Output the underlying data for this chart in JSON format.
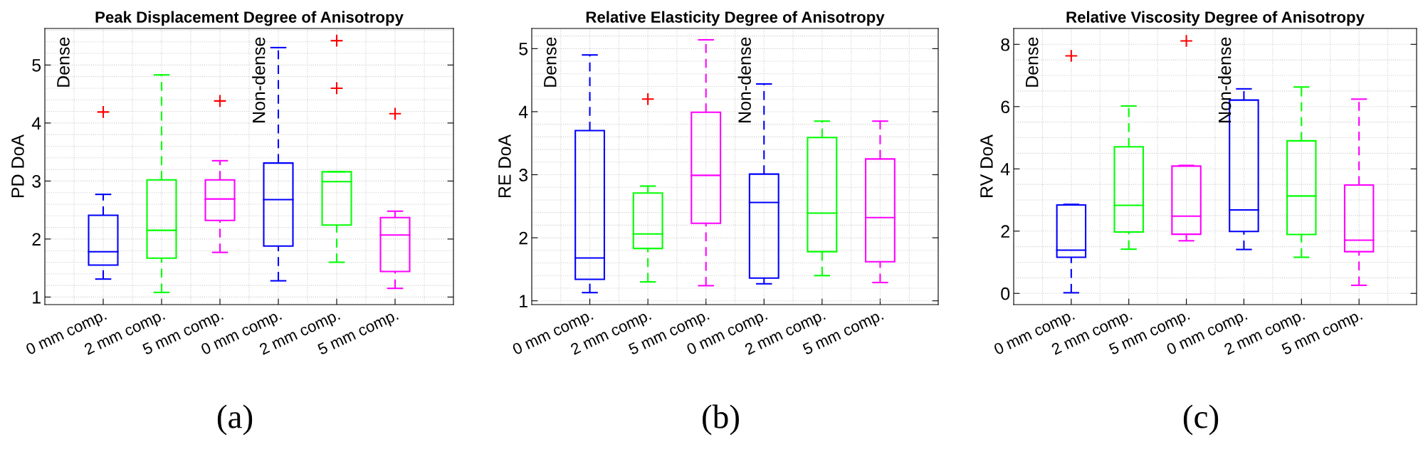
{
  "chart_data": [
    {
      "type": "box",
      "title": "Peak Displacement Degree of Anisotropy",
      "ylabel": "PD DoA",
      "categories": [
        "0 mm comp.",
        "2 mm comp.",
        "5 mm comp.",
        "0 mm comp.",
        "2 mm comp.",
        "5 mm comp."
      ],
      "colors": [
        "#0000ff",
        "#00ff00",
        "#ff00ff",
        "#0000ff",
        "#00ff00",
        "#ff00ff"
      ],
      "boxes": [
        {
          "low": 1.31,
          "q1": 1.55,
          "median": 1.78,
          "q3": 2.41,
          "high": 2.77,
          "outliers": [
            4.19
          ]
        },
        {
          "low": 1.08,
          "q1": 1.67,
          "median": 2.15,
          "q3": 3.02,
          "high": 4.83
        },
        {
          "low": 1.77,
          "q1": 2.32,
          "median": 2.69,
          "q3": 3.02,
          "high": 3.35,
          "outliers": [
            4.38
          ]
        },
        {
          "low": 1.28,
          "q1": 1.88,
          "median": 2.68,
          "q3": 3.31,
          "high": 5.3
        },
        {
          "low": 1.6,
          "q1": 2.24,
          "median": 2.99,
          "q3": 3.16,
          "high": 3.16,
          "outliers": [
            5.42,
            4.6
          ]
        },
        {
          "low": 1.15,
          "q1": 1.44,
          "median": 2.07,
          "q3": 2.37,
          "high": 2.48,
          "outliers": [
            4.16
          ]
        }
      ],
      "ylim": [
        0.87,
        5.63
      ],
      "yticks": [
        1,
        2,
        3,
        4,
        5
      ],
      "grid": true,
      "line_style": "dashed",
      "marker": "cross",
      "annotations": [
        "Dense",
        "Non-dense",
        "(a)"
      ]
    },
    {
      "type": "box",
      "title": "Relative Elasticity Degree of Anisotropy",
      "ylabel": "RE DoA",
      "categories": [
        "0 mm comp.",
        "2 mm comp.",
        "5 mm comp.",
        "0 mm comp.",
        "2 mm comp.",
        "5 mm comp."
      ],
      "colors": [
        "#0000ff",
        "#00ff00",
        "#ff00ff",
        "#0000ff",
        "#00ff00",
        "#ff00ff"
      ],
      "boxes": [
        {
          "low": 1.13,
          "q1": 1.34,
          "median": 1.68,
          "q3": 3.7,
          "high": 4.9
        },
        {
          "low": 1.3,
          "q1": 1.83,
          "median": 2.06,
          "q3": 2.71,
          "high": 2.82,
          "outliers": [
            4.2
          ]
        },
        {
          "low": 1.24,
          "q1": 2.23,
          "median": 2.99,
          "q3": 3.99,
          "high": 5.14
        },
        {
          "low": 1.27,
          "q1": 1.36,
          "median": 2.56,
          "q3": 3.01,
          "high": 4.44
        },
        {
          "low": 1.4,
          "q1": 1.78,
          "median": 2.39,
          "q3": 3.59,
          "high": 3.85
        },
        {
          "low": 1.29,
          "q1": 1.62,
          "median": 2.32,
          "q3": 3.25,
          "high": 3.85
        }
      ],
      "ylim": [
        0.94,
        5.32
      ],
      "yticks": [
        1,
        2,
        3,
        4,
        5
      ],
      "grid": true,
      "line_style": "dashed",
      "marker": "cross",
      "annotations": [
        "Dense",
        "Non-dense",
        "(b)"
      ]
    },
    {
      "type": "box",
      "title": "Relative Viscosity Degree of Anisotropy",
      "ylabel": "RV DoA",
      "categories": [
        "0 mm comp.",
        "2 mm comp.",
        "5 mm comp.",
        "0 mm comp.",
        "2 mm comp.",
        "5 mm comp."
      ],
      "colors": [
        "#0000ff",
        "#00ff00",
        "#ff00ff",
        "#0000ff",
        "#00ff00",
        "#ff00ff"
      ],
      "boxes": [
        {
          "low": 0.02,
          "q1": 1.16,
          "median": 1.39,
          "q3": 2.84,
          "high": 2.86,
          "outliers": [
            7.63
          ]
        },
        {
          "low": 1.42,
          "q1": 1.97,
          "median": 2.83,
          "q3": 4.71,
          "high": 6.02
        },
        {
          "low": 1.69,
          "q1": 1.9,
          "median": 2.48,
          "q3": 4.09,
          "high": 4.11,
          "outliers": [
            8.11
          ]
        },
        {
          "low": 1.41,
          "q1": 1.99,
          "median": 2.68,
          "q3": 6.21,
          "high": 6.57
        },
        {
          "low": 1.16,
          "q1": 1.89,
          "median": 3.13,
          "q3": 4.9,
          "high": 6.63
        },
        {
          "low": 0.26,
          "q1": 1.34,
          "median": 1.71,
          "q3": 3.48,
          "high": 6.24
        }
      ],
      "ylim": [
        -0.36,
        8.51
      ],
      "yticks": [
        0,
        2,
        4,
        6,
        8
      ],
      "grid": true,
      "line_style": "dashed",
      "marker": "cross",
      "annotations": [
        "Dense",
        "Non-dense",
        "(c)"
      ]
    }
  ]
}
